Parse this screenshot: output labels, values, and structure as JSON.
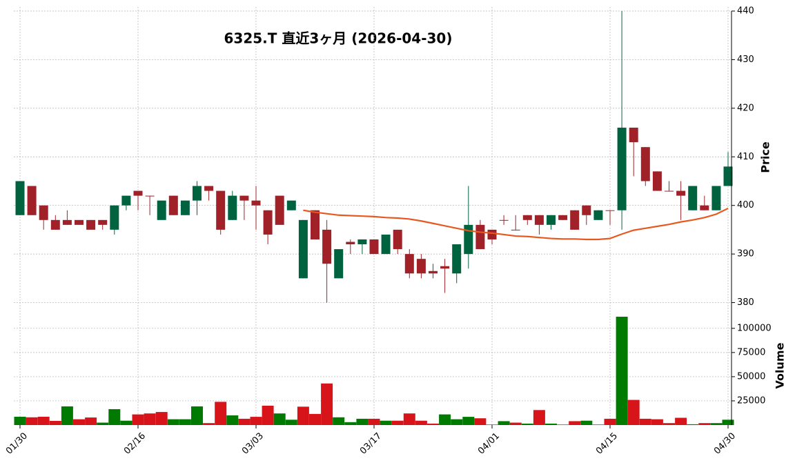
{
  "chart_data": [
    {
      "type": "candlestick",
      "title": "6325.T  直近3ヶ月  (2026-04-30)",
      "ylabel": "Price",
      "categories": [
        "01/30",
        null,
        null,
        null,
        null,
        null,
        null,
        null,
        null,
        null,
        "02/16",
        null,
        null,
        null,
        null,
        null,
        null,
        null,
        null,
        null,
        "03/03",
        null,
        null,
        null,
        null,
        null,
        null,
        null,
        null,
        null,
        "03/17",
        null,
        null,
        null,
        null,
        null,
        null,
        null,
        null,
        null,
        "04/01",
        null,
        null,
        null,
        null,
        null,
        null,
        null,
        null,
        null,
        "04/15",
        null,
        null,
        null,
        null,
        null,
        null,
        null,
        null,
        null,
        "04/30"
      ],
      "open": [
        398,
        404,
        400,
        397,
        397,
        397,
        397,
        397,
        395,
        400,
        403,
        402,
        397,
        402,
        398,
        401,
        404,
        403,
        397,
        402,
        401,
        399,
        402,
        399,
        385,
        399,
        395,
        385,
        392.5,
        392,
        393,
        390,
        395,
        390,
        389,
        386.5,
        387.5,
        386,
        390,
        396,
        395,
        397,
        395,
        398,
        398,
        396,
        398,
        399,
        400,
        397,
        399,
        399,
        416,
        412,
        407,
        403,
        403,
        399,
        400,
        399,
        404
      ],
      "high": [
        405,
        404,
        400,
        398,
        399,
        397,
        397,
        397,
        400,
        402,
        403,
        402,
        401,
        402,
        401,
        405,
        404,
        403,
        403,
        402,
        404,
        399,
        402,
        401,
        397,
        399,
        397,
        391,
        393,
        393,
        393,
        394,
        395,
        391,
        390,
        388,
        389,
        392,
        404,
        397,
        395,
        398,
        398,
        398,
        398,
        398,
        398,
        399,
        400,
        399,
        399,
        440,
        416,
        412,
        407,
        405,
        405,
        404,
        402,
        404,
        411
      ],
      "low": [
        398,
        398,
        395,
        395,
        396,
        396,
        395,
        395,
        394,
        399,
        399,
        398,
        397,
        398,
        398,
        398,
        401,
        394,
        397,
        397,
        395,
        392,
        396,
        399,
        385,
        393,
        380,
        385,
        390,
        390,
        390,
        390,
        390,
        385,
        385,
        385,
        382,
        384,
        387,
        391,
        392,
        396,
        395,
        396,
        394,
        395,
        397,
        395,
        396,
        397,
        396,
        395,
        406,
        404,
        403,
        403,
        397,
        399,
        399,
        399,
        404
      ],
      "close": [
        405,
        398,
        397,
        395,
        396,
        396,
        395,
        396,
        400,
        402,
        402,
        402,
        401,
        398,
        401,
        404,
        403,
        395,
        402,
        401,
        400,
        394,
        396,
        401,
        397,
        393,
        388,
        391,
        392,
        393,
        390,
        394,
        391,
        386,
        386,
        386,
        387,
        392,
        396,
        391,
        393,
        397,
        395,
        397,
        396,
        398,
        397,
        395,
        398,
        399,
        399,
        416,
        413,
        405,
        403,
        403,
        402,
        404,
        399,
        404,
        408
      ],
      "up_color": "#006340",
      "down_color": "#a02128",
      "lines": [
        {
          "color": "#e8571d",
          "values": [
            null,
            null,
            null,
            null,
            null,
            null,
            null,
            null,
            null,
            null,
            null,
            null,
            null,
            null,
            null,
            null,
            null,
            null,
            null,
            null,
            null,
            null,
            null,
            null,
            399,
            398.6,
            398.3,
            398.0,
            397.9,
            397.8,
            397.7,
            397.5,
            397.4,
            397.2,
            396.8,
            396.3,
            395.8,
            395.3,
            394.8,
            394.5,
            394.3,
            394.0,
            393.7,
            393.6,
            393.4,
            393.2,
            393.1,
            393.1,
            393.0,
            393.0,
            393.2,
            394.1,
            394.9,
            395.3,
            395.7,
            396.1,
            396.6,
            397.0,
            397.5,
            398.2,
            399.4
          ]
        }
      ],
      "ylim": [
        378.8,
        440
      ],
      "yticks": [
        380,
        390,
        400,
        410,
        420,
        430,
        440
      ],
      "grid": true
    },
    {
      "type": "bar",
      "ylabel": "Volume",
      "values": [
        8600,
        8000,
        8600,
        4300,
        19300,
        6000,
        7800,
        2500,
        16400,
        4500,
        11000,
        12000,
        13500,
        6000,
        6000,
        19300,
        2000,
        24000,
        10000,
        6500,
        8500,
        20000,
        12000,
        5500,
        19000,
        11500,
        43000,
        8000,
        3000,
        6500,
        6500,
        4500,
        4500,
        12000,
        4500,
        1500,
        11000,
        6000,
        8500,
        7000,
        500,
        4000,
        2500,
        1500,
        15500,
        1500,
        500,
        4000,
        4500,
        500,
        6500,
        112000,
        26000,
        6500,
        6000,
        2000,
        7500,
        800,
        2000,
        2000,
        5500
      ],
      "colors": [
        "#007a00",
        "#d7141a",
        "#d7141a",
        "#d7141a",
        "#007a00",
        "#d7141a",
        "#d7141a",
        "#007a00",
        "#007a00",
        "#007a00",
        "#d7141a",
        "#d7141a",
        "#d7141a",
        "#007a00",
        "#007a00",
        "#007a00",
        "#d7141a",
        "#d7141a",
        "#007a00",
        "#d7141a",
        "#d7141a",
        "#d7141a",
        "#007a00",
        "#007a00",
        "#d7141a",
        "#d7141a",
        "#d7141a",
        "#007a00",
        "#007a00",
        "#007a00",
        "#d7141a",
        "#007a00",
        "#d7141a",
        "#d7141a",
        "#d7141a",
        "#d7141a",
        "#007a00",
        "#007a00",
        "#007a00",
        "#d7141a",
        "#d7141a",
        "#007a00",
        "#d7141a",
        "#007a00",
        "#d7141a",
        "#007a00",
        "#d7141a",
        "#d7141a",
        "#007a00",
        "#007a00",
        "#d7141a",
        "#007a00",
        "#d7141a",
        "#d7141a",
        "#d7141a",
        "#d7141a",
        "#d7141a",
        "#007a00",
        "#d7141a",
        "#007a00",
        "#007a00"
      ],
      "ylim": [
        0,
        117000
      ],
      "yticks": [
        25000,
        50000,
        75000,
        100000
      ],
      "grid": true
    }
  ]
}
